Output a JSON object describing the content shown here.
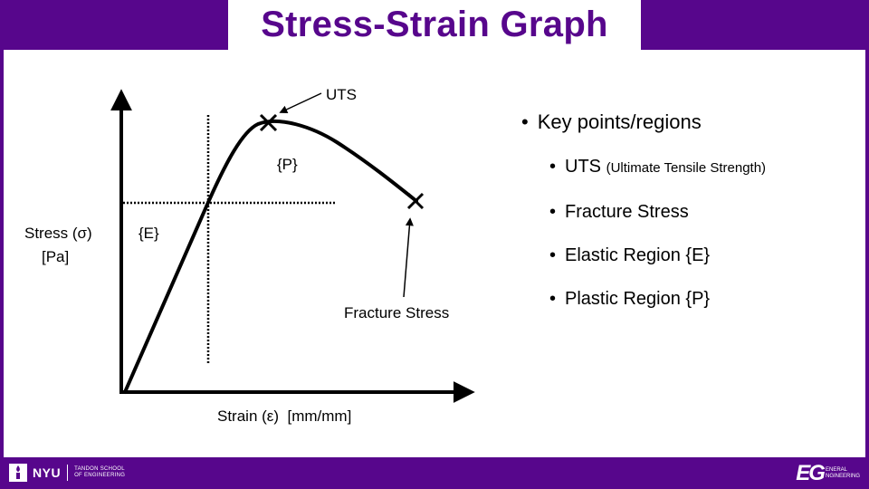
{
  "title": "Stress-Strain Graph",
  "diagram": {
    "uts_label": "UTS",
    "plastic_label": "{P}",
    "elastic_label": "{E}",
    "fracture_label": "Fracture Stress",
    "y_axis_label_line1": "Stress (σ)",
    "y_axis_label_line2": "[Pa]",
    "x_axis_label": "Strain (ε)  [mm/mm]"
  },
  "bullets": {
    "heading": "Key points/regions",
    "uts_main": "UTS",
    "uts_note": "(Ultimate Tensile Strength)",
    "fracture": "Fracture Stress",
    "elastic": "Elastic Region {E}",
    "plastic": "Plastic Region {P}"
  },
  "footer": {
    "nyu_logo_text": "NYU",
    "nyu_school_line1": "TANDON SCHOOL",
    "nyu_school_line2": "OF ENGINEERING",
    "eg_logo_mark": "EG",
    "eg_line1": "ENERAL",
    "eg_line2": "NGINEERING"
  },
  "colors": {
    "brand_purple": "#57068c",
    "ink": "#000000",
    "background": "#ffffff"
  }
}
